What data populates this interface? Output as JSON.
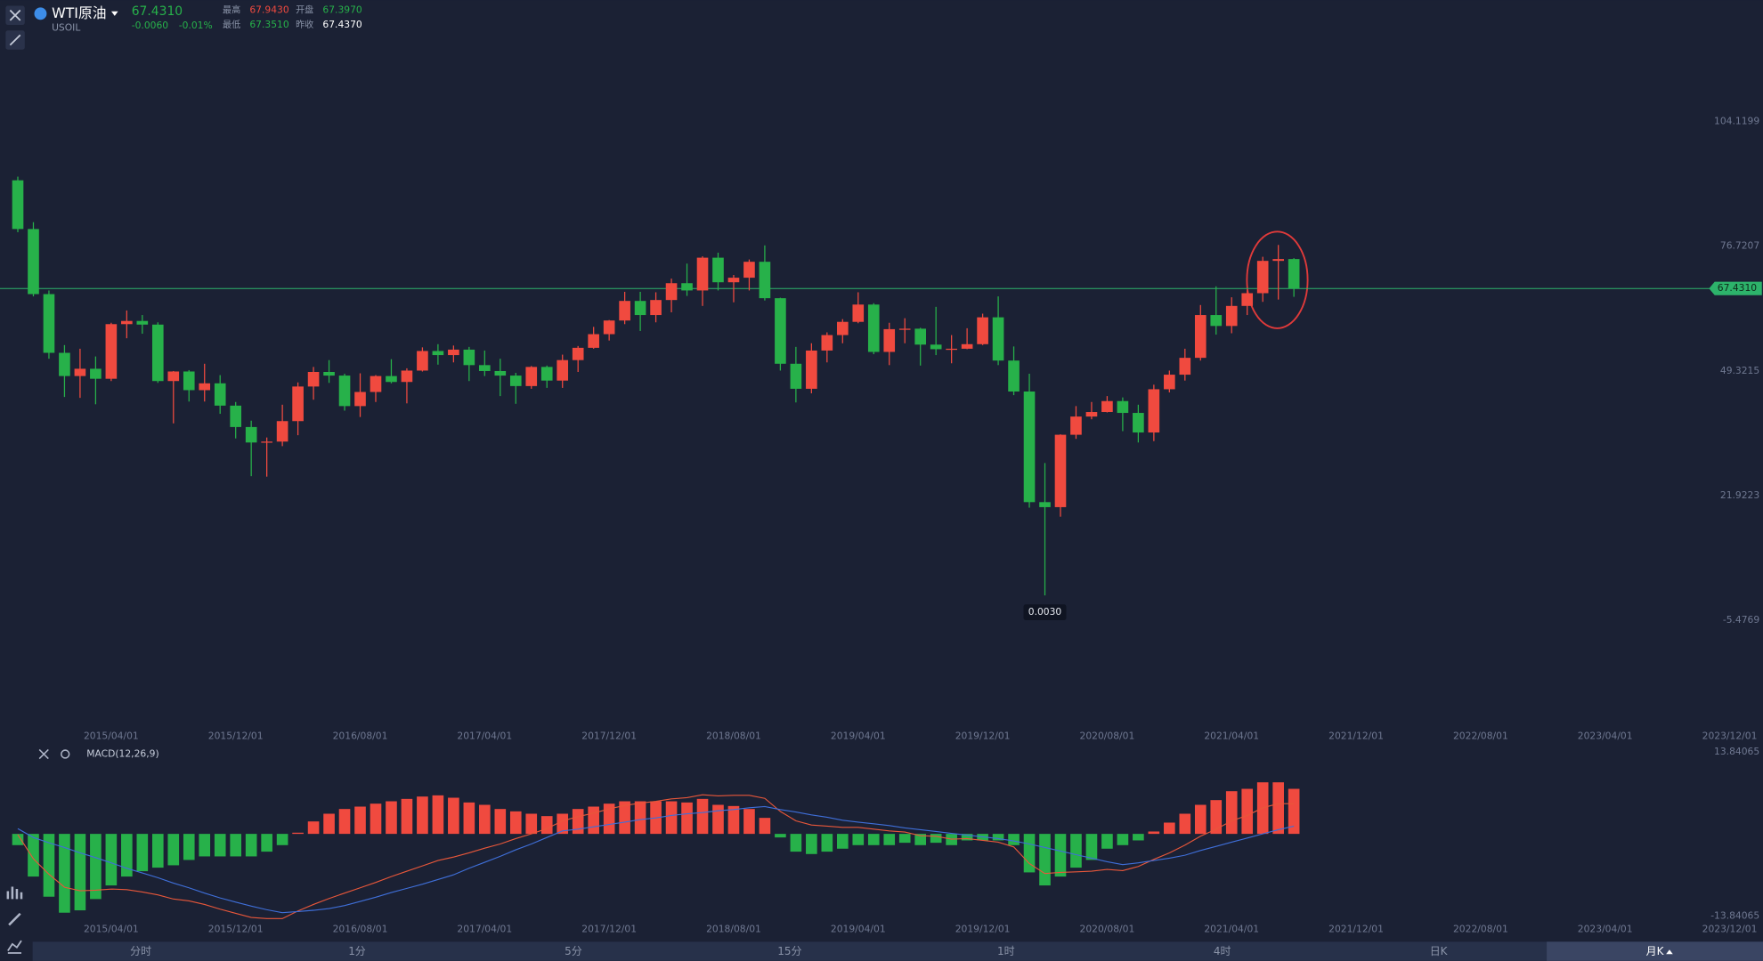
{
  "header": {
    "name": "WTI原油",
    "symbol": "USOIL",
    "price": "67.4310",
    "change": "-0.0060",
    "change_pct": "-0.01%",
    "stats": [
      {
        "label": "最高",
        "value": "67.9430"
      },
      {
        "label": "开盘",
        "value": "67.3970"
      },
      {
        "label": "最低",
        "value": "67.3510"
      },
      {
        "label": "昨收",
        "value": "67.4370"
      }
    ]
  },
  "chart_data": {
    "type": "candlestick",
    "up_color": "#f04a3f",
    "down_color": "#27b14a",
    "x": [
      "2014/10/01",
      "2014/11/01",
      "2014/12/01",
      "2015/01/01",
      "2015/02/01",
      "2015/03/01",
      "2015/04/01",
      "2015/05/01",
      "2015/06/01",
      "2015/07/01",
      "2015/08/01",
      "2015/09/01",
      "2015/10/01",
      "2015/11/01",
      "2015/12/01",
      "2016/01/01",
      "2016/02/01",
      "2016/03/01",
      "2016/04/01",
      "2016/05/01",
      "2016/06/01",
      "2016/07/01",
      "2016/08/01",
      "2016/09/01",
      "2016/10/01",
      "2016/11/01",
      "2016/12/01",
      "2017/01/01",
      "2017/02/01",
      "2017/03/01",
      "2017/04/01",
      "2017/05/01",
      "2017/06/01",
      "2017/07/01",
      "2017/08/01",
      "2017/09/01",
      "2017/10/01",
      "2017/11/01",
      "2017/12/01",
      "2018/01/01",
      "2018/02/01",
      "2018/03/01",
      "2018/04/01",
      "2018/05/01",
      "2018/06/01",
      "2018/07/01",
      "2018/08/01",
      "2018/09/01",
      "2018/10/01",
      "2018/11/01",
      "2018/12/01",
      "2019/01/01",
      "2019/02/01",
      "2019/03/01",
      "2019/04/01",
      "2019/05/01",
      "2019/06/01",
      "2019/07/01",
      "2019/08/01",
      "2019/09/01",
      "2019/10/01",
      "2019/11/01",
      "2019/12/01",
      "2020/01/01",
      "2020/02/01",
      "2020/03/01",
      "2020/04/01",
      "2020/05/01",
      "2020/06/01",
      "2020/07/01",
      "2020/08/01",
      "2020/09/01",
      "2020/10/01",
      "2020/11/01",
      "2020/12/01",
      "2021/01/01",
      "2021/02/01",
      "2021/03/01",
      "2021/04/01",
      "2021/05/01",
      "2021/06/01",
      "2021/07/01",
      "2021/08/01"
    ],
    "open": [
      91.2,
      80.5,
      66.2,
      53.3,
      48.2,
      49.8,
      47.6,
      59.6,
      60.3,
      59.5,
      47.1,
      49.2,
      45.1,
      46.6,
      41.7,
      37.0,
      33.6,
      33.8,
      38.3,
      45.9,
      49.1,
      48.3,
      41.6,
      44.7,
      48.2,
      46.9,
      49.4,
      53.7,
      52.8,
      54.0,
      50.6,
      49.3,
      48.3,
      46.0,
      50.2,
      47.2,
      51.7,
      54.4,
      57.4,
      60.4,
      64.7,
      61.6,
      64.9,
      68.6,
      67.0,
      74.2,
      68.8,
      69.8,
      73.3,
      65.3,
      50.9,
      45.4,
      53.8,
      57.2,
      60.1,
      63.9,
      53.5,
      58.5,
      58.6,
      55.1,
      54.1,
      54.2,
      55.2,
      61.1,
      51.6,
      44.8,
      20.5,
      19.4,
      35.3,
      39.3,
      40.3,
      42.7,
      40.1,
      35.8,
      45.3,
      48.5,
      52.2,
      61.6,
      59.2,
      63.6,
      66.4,
      73.5,
      73.9
    ],
    "high": [
      92.0,
      82.0,
      67.0,
      55.0,
      54.2,
      52.5,
      59.9,
      62.6,
      61.6,
      60.0,
      49.3,
      49.5,
      50.9,
      48.4,
      42.5,
      38.4,
      34.7,
      41.9,
      46.8,
      50.2,
      51.7,
      48.7,
      48.8,
      48.4,
      51.9,
      49.9,
      54.5,
      55.2,
      54.9,
      54.6,
      53.8,
      52.0,
      48.9,
      50.4,
      50.5,
      52.9,
      54.8,
      59.0,
      60.5,
      66.7,
      66.7,
      66.6,
      69.6,
      72.9,
      74.5,
      75.3,
      70.4,
      73.8,
      76.9,
      65.4,
      54.6,
      55.4,
      57.8,
      60.7,
      66.6,
      64.2,
      59.9,
      60.9,
      58.8,
      63.4,
      57.2,
      58.7,
      61.9,
      65.7,
      54.7,
      48.7,
      29.1,
      35.4,
      41.6,
      42.5,
      43.8,
      43.5,
      41.9,
      46.3,
      49.4,
      54.2,
      63.8,
      67.9,
      65.5,
      67.0,
      74.4,
      77.0,
      74.1
    ],
    "low": [
      79.8,
      65.7,
      52.0,
      43.6,
      43.4,
      42.0,
      47.1,
      56.5,
      57.5,
      46.7,
      37.8,
      42.6,
      42.6,
      39.9,
      34.5,
      26.2,
      26.1,
      32.8,
      35.2,
      43.0,
      46.7,
      40.6,
      39.2,
      42.5,
      46.6,
      42.2,
      49.2,
      50.7,
      51.2,
      47.1,
      48.2,
      43.8,
      42.1,
      45.4,
      45.6,
      45.6,
      49.1,
      54.2,
      56.0,
      59.6,
      58.1,
      60.0,
      62.2,
      65.8,
      63.6,
      67.0,
      64.4,
      67.0,
      64.8,
      49.4,
      42.4,
      44.4,
      51.2,
      55.4,
      59.8,
      53.0,
      50.6,
      55.4,
      50.5,
      52.8,
      51.0,
      54.1,
      55.0,
      50.6,
      44.0,
      19.3,
      0.003,
      17.3,
      34.4,
      38.7,
      40.2,
      36.1,
      33.6,
      33.9,
      44.6,
      47.2,
      51.6,
      57.3,
      57.6,
      61.6,
      64.5,
      65.0,
      65.6
    ],
    "close": [
      80.5,
      66.2,
      53.3,
      48.2,
      49.8,
      47.6,
      59.6,
      60.3,
      59.5,
      47.1,
      49.2,
      45.1,
      46.6,
      41.7,
      37.0,
      33.6,
      33.8,
      38.3,
      45.9,
      49.1,
      48.3,
      41.6,
      44.7,
      48.2,
      46.9,
      49.4,
      53.7,
      52.8,
      54.0,
      50.6,
      49.3,
      48.3,
      46.0,
      50.2,
      47.2,
      51.7,
      54.4,
      57.4,
      60.4,
      64.7,
      61.6,
      64.9,
      68.6,
      67.0,
      74.2,
      68.8,
      69.8,
      73.3,
      65.3,
      50.9,
      45.4,
      53.8,
      57.2,
      60.1,
      63.9,
      53.5,
      58.5,
      58.6,
      55.1,
      54.1,
      54.2,
      55.2,
      61.1,
      51.6,
      44.8,
      20.5,
      19.4,
      35.3,
      39.3,
      40.3,
      42.7,
      40.1,
      35.8,
      45.3,
      48.5,
      52.2,
      61.6,
      59.2,
      63.6,
      66.4,
      73.5,
      73.9,
      67.43
    ],
    "xlim": [
      "2014/09/01",
      "2024/02/01"
    ],
    "xticks": [
      "2015/04/01",
      "2015/12/01",
      "2016/08/01",
      "2017/04/01",
      "2017/12/01",
      "2018/08/01",
      "2019/04/01",
      "2019/12/01",
      "2020/08/01",
      "2021/04/01",
      "2021/12/01",
      "2022/08/01",
      "2023/04/01",
      "2023/12/01"
    ],
    "ylim": [
      -27.2,
      120.9
    ],
    "yticks": [
      104.1199,
      76.7207,
      49.3215,
      21.9223,
      -5.4769
    ],
    "last_price": {
      "value": 67.431,
      "label": "67.4310",
      "color": "#2db36b"
    },
    "annotations": [
      {
        "x": "2020/04/01",
        "value": 0.003,
        "label": "0.0030"
      }
    ],
    "indicator": {
      "type": "macd",
      "title": "MACD(12,26,9)",
      "ylim": [
        -13.84065,
        13.84065
      ],
      "yticks": [
        13.84065,
        -13.84065
      ],
      "series": [
        {
          "color": "hist",
          "values": [
            -1.9,
            -7.2,
            -10.6,
            -13.3,
            -12.9,
            -11.0,
            -8.7,
            -7.2,
            -6.3,
            -5.7,
            -5.3,
            -4.4,
            -3.8,
            -3.8,
            -3.8,
            -3.8,
            -3.0,
            -1.9,
            0.2,
            2.1,
            3.4,
            4.2,
            4.6,
            5.1,
            5.5,
            5.9,
            6.3,
            6.5,
            6.1,
            5.3,
            4.9,
            4.2,
            3.8,
            3.4,
            3.0,
            3.4,
            4.2,
            4.6,
            5.1,
            5.5,
            5.5,
            5.5,
            5.5,
            5.3,
            5.9,
            4.9,
            4.7,
            4.2,
            2.7,
            -0.6,
            -3.0,
            -3.4,
            -3.0,
            -2.5,
            -1.9,
            -1.9,
            -1.9,
            -1.5,
            -1.9,
            -1.5,
            -1.9,
            -1.1,
            -1.1,
            -1.1,
            -1.9,
            -6.5,
            -8.7,
            -7.2,
            -5.7,
            -4.4,
            -2.5,
            -1.9,
            -1.1,
            0.4,
            1.9,
            3.4,
            4.9,
            5.7,
            7.2,
            7.6,
            8.7,
            8.7,
            7.6
          ]
        },
        {
          "color": "#e8573a",
          "values": [
            -0.1,
            -4.2,
            -6.8,
            -9.0,
            -9.6,
            -9.5,
            -9.3,
            -9.4,
            -9.8,
            -10.3,
            -11.0,
            -11.3,
            -11.9,
            -12.7,
            -13.4,
            -14.1,
            -14.3,
            -14.3,
            -13.0,
            -11.9,
            -10.9,
            -10.0,
            -9.1,
            -8.2,
            -7.2,
            -6.3,
            -5.4,
            -4.5,
            -3.9,
            -3.2,
            -2.4,
            -1.7,
            -0.8,
            0.0,
            0.9,
            2.2,
            2.9,
            3.5,
            4.2,
            4.8,
            5.2,
            5.5,
            5.9,
            6.1,
            6.6,
            6.4,
            6.5,
            6.5,
            6.0,
            3.8,
            2.2,
            1.5,
            1.3,
            1.1,
            1.1,
            0.8,
            0.5,
            0.3,
            -0.3,
            -0.4,
            -0.9,
            -0.8,
            -1.1,
            -1.4,
            -2.2,
            -5.0,
            -6.7,
            -6.5,
            -6.4,
            -6.3,
            -6.0,
            -6.2,
            -5.5,
            -4.3,
            -3.2,
            -1.9,
            -0.4,
            0.8,
            2.2,
            3.1,
            4.4,
            5.1,
            5.1
          ]
        },
        {
          "color": "#3f6fd9",
          "values": [
            0.9,
            -0.6,
            -1.5,
            -2.3,
            -3.2,
            -4.0,
            -4.9,
            -5.8,
            -6.6,
            -7.4,
            -8.3,
            -9.1,
            -10.0,
            -10.8,
            -11.5,
            -12.2,
            -12.8,
            -13.3,
            -13.1,
            -12.9,
            -12.6,
            -12.1,
            -11.4,
            -10.7,
            -9.9,
            -9.2,
            -8.5,
            -7.7,
            -6.9,
            -5.8,
            -4.8,
            -3.8,
            -2.7,
            -1.7,
            -0.6,
            0.5,
            0.8,
            1.2,
            1.6,
            2.0,
            2.4,
            2.7,
            3.1,
            3.4,
            3.6,
            3.9,
            4.1,
            4.4,
            4.6,
            4.1,
            3.7,
            3.2,
            2.8,
            2.3,
            2.0,
            1.7,
            1.4,
            1.0,
            0.7,
            0.4,
            0.1,
            -0.2,
            -0.5,
            -0.8,
            -1.2,
            -1.7,
            -2.3,
            -2.9,
            -3.5,
            -4.1,
            -4.7,
            -5.2,
            -4.9,
            -4.5,
            -4.1,
            -3.6,
            -2.8,
            -2.1,
            -1.4,
            -0.7,
            0.0,
            0.7,
            1.3
          ]
        }
      ]
    }
  },
  "tabs": [
    "分时",
    "1分",
    "5分",
    "15分",
    "1时",
    "4时",
    "日K",
    "月K"
  ],
  "selected_tab": 7
}
